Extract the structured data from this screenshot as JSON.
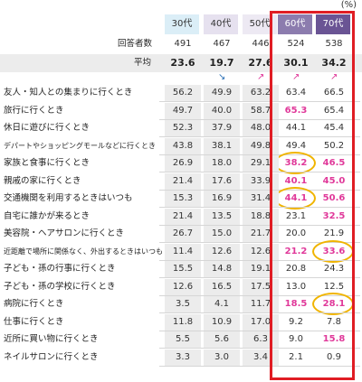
{
  "unit": "(%)",
  "colors": {
    "pink": "#e0399a",
    "red_box": "#e01d24",
    "ring": "#f0b400"
  },
  "chart_data": {
    "type": "table",
    "columns": [
      "30代",
      "40代",
      "50代",
      "60代",
      "70代"
    ],
    "respondents_label": "回答者数",
    "respondents": [
      "491",
      "467",
      "446",
      "524",
      "538"
    ],
    "average_label": "平均",
    "average": [
      "23.6",
      "19.7",
      "27.6",
      "30.1",
      "34.2"
    ],
    "average_trend": [
      "",
      "down",
      "up",
      "up",
      "up"
    ],
    "rows": [
      {
        "label": "友人・知人との集まりに行くとき",
        "values": [
          "56.2",
          "49.9",
          "63.2",
          "63.4",
          "66.5"
        ],
        "highlight": [
          false,
          false,
          false,
          false,
          false
        ],
        "circled": [
          false,
          false,
          false,
          false,
          false
        ]
      },
      {
        "label": "旅行に行くとき",
        "values": [
          "49.7",
          "40.0",
          "58.7",
          "65.3",
          "65.4"
        ],
        "highlight": [
          false,
          false,
          false,
          true,
          false
        ],
        "circled": [
          false,
          false,
          false,
          false,
          false
        ]
      },
      {
        "label": "休日に遊びに行くとき",
        "values": [
          "52.3",
          "37.9",
          "48.0",
          "44.1",
          "45.4"
        ],
        "highlight": [
          false,
          false,
          false,
          false,
          false
        ],
        "circled": [
          false,
          false,
          false,
          false,
          false
        ]
      },
      {
        "label": "デパートやショッピングモールなどに行くとき",
        "values": [
          "43.8",
          "38.1",
          "49.8",
          "49.4",
          "50.2"
        ],
        "highlight": [
          false,
          false,
          false,
          false,
          false
        ],
        "circled": [
          false,
          false,
          false,
          false,
          false
        ]
      },
      {
        "label": "家族と食事に行くとき",
        "values": [
          "26.9",
          "18.0",
          "29.1",
          "38.2",
          "46.5"
        ],
        "highlight": [
          false,
          false,
          false,
          true,
          true
        ],
        "circled": [
          false,
          false,
          false,
          true,
          false
        ]
      },
      {
        "label": "親戚の家に行くとき",
        "values": [
          "21.4",
          "17.6",
          "33.9",
          "40.1",
          "45.0"
        ],
        "highlight": [
          false,
          false,
          false,
          true,
          true
        ],
        "circled": [
          false,
          false,
          false,
          false,
          false
        ]
      },
      {
        "label": "交通機関を利用するときはいつも",
        "values": [
          "15.3",
          "16.9",
          "31.4",
          "44.1",
          "50.6"
        ],
        "highlight": [
          false,
          false,
          false,
          true,
          true
        ],
        "circled": [
          false,
          false,
          false,
          true,
          false
        ]
      },
      {
        "label": "自宅に誰かが来るとき",
        "values": [
          "21.4",
          "13.5",
          "18.8",
          "23.1",
          "32.5"
        ],
        "highlight": [
          false,
          false,
          false,
          false,
          true
        ],
        "circled": [
          false,
          false,
          false,
          false,
          false
        ]
      },
      {
        "label": "美容院・ヘアサロンに行くとき",
        "values": [
          "26.7",
          "15.0",
          "21.7",
          "20.0",
          "21.9"
        ],
        "highlight": [
          false,
          false,
          false,
          false,
          false
        ],
        "circled": [
          false,
          false,
          false,
          false,
          false
        ]
      },
      {
        "label": "近距離で場所に関係なく、外出するときはいつも",
        "values": [
          "11.4",
          "12.6",
          "12.6",
          "21.2",
          "33.6"
        ],
        "highlight": [
          false,
          false,
          false,
          true,
          true
        ],
        "circled": [
          false,
          false,
          false,
          false,
          true
        ]
      },
      {
        "label": "子ども・孫の行事に行くとき",
        "values": [
          "15.5",
          "14.8",
          "19.1",
          "20.8",
          "24.3"
        ],
        "highlight": [
          false,
          false,
          false,
          false,
          false
        ],
        "circled": [
          false,
          false,
          false,
          false,
          false
        ]
      },
      {
        "label": "子ども・孫の学校に行くとき",
        "values": [
          "12.6",
          "16.5",
          "17.5",
          "13.0",
          "12.5"
        ],
        "highlight": [
          false,
          false,
          false,
          false,
          false
        ],
        "circled": [
          false,
          false,
          false,
          false,
          false
        ]
      },
      {
        "label": "病院に行くとき",
        "values": [
          "3.5",
          "4.1",
          "11.7",
          "18.5",
          "28.1"
        ],
        "highlight": [
          false,
          false,
          false,
          true,
          true
        ],
        "circled": [
          false,
          false,
          false,
          false,
          true
        ]
      },
      {
        "label": "仕事に行くとき",
        "values": [
          "11.8",
          "10.9",
          "17.0",
          "9.2",
          "7.8"
        ],
        "highlight": [
          false,
          false,
          false,
          false,
          false
        ],
        "circled": [
          false,
          false,
          false,
          false,
          false
        ]
      },
      {
        "label": "近所に買い物に行くとき",
        "values": [
          "5.5",
          "5.6",
          "6.3",
          "9.0",
          "15.8"
        ],
        "highlight": [
          false,
          false,
          false,
          false,
          true
        ],
        "circled": [
          false,
          false,
          false,
          false,
          false
        ]
      },
      {
        "label": "ネイルサロンに行くとき",
        "values": [
          "3.3",
          "3.0",
          "3.4",
          "2.1",
          "0.9"
        ],
        "highlight": [
          false,
          false,
          false,
          false,
          false
        ],
        "circled": [
          false,
          false,
          false,
          false,
          false
        ]
      }
    ]
  }
}
